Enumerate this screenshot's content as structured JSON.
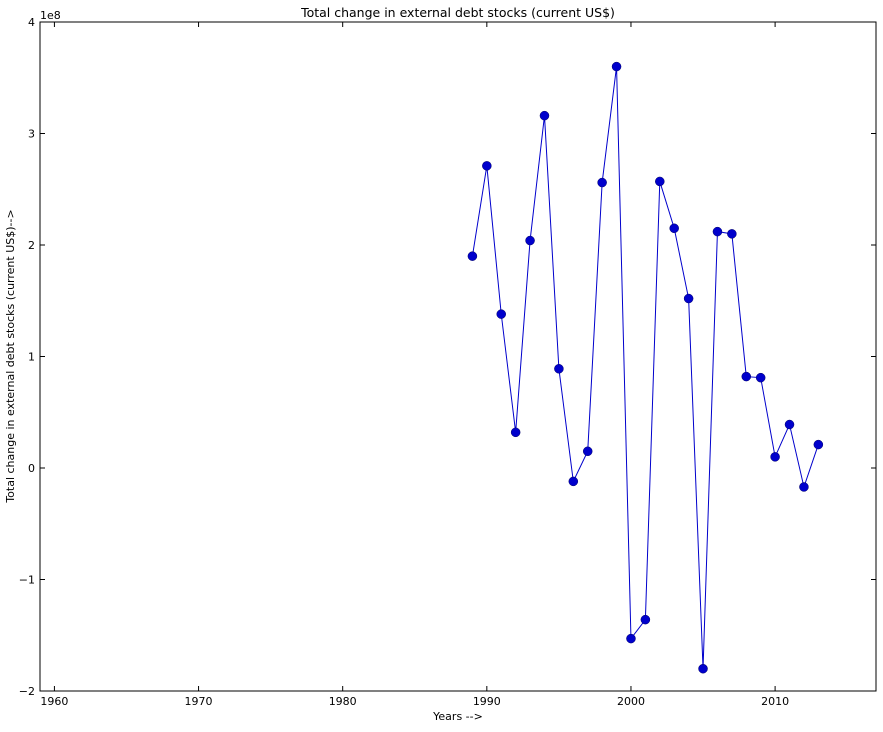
{
  "chart_data": {
    "type": "line",
    "title": "Total change in external debt stocks (current US$)",
    "xlabel": "Years -->",
    "ylabel": "Total change in external debt stocks (current US$)-->",
    "y_exponent_label": "1e8",
    "xlim": [
      1959,
      2017
    ],
    "ylim": [
      -2,
      4
    ],
    "y_units_multiplier": 100000000,
    "x_ticks": [
      1960,
      1970,
      1980,
      1990,
      2000,
      2010
    ],
    "x_tick_labels": [
      "1960",
      "1970",
      "1980",
      "1990",
      "2000",
      "2010"
    ],
    "y_ticks": [
      -2,
      -1,
      0,
      1,
      2,
      3,
      4
    ],
    "y_tick_labels": [
      "−2",
      "−1",
      "0",
      "1",
      "2",
      "3",
      "4"
    ],
    "grid": false,
    "legend": "none",
    "series": [
      {
        "color": "#0000cc",
        "marker": "circle",
        "x": [
          1989,
          1990,
          1991,
          1992,
          1993,
          1994,
          1995,
          1996,
          1997,
          1998,
          1999,
          2000,
          2001,
          2002,
          2003,
          2004,
          2005,
          2006,
          2007,
          2008,
          2009,
          2010,
          2011,
          2012,
          2013
        ],
        "y": [
          1.9,
          2.71,
          1.38,
          0.32,
          2.04,
          3.16,
          0.89,
          -0.12,
          0.15,
          2.56,
          3.6,
          -1.53,
          -1.36,
          2.57,
          2.15,
          1.52,
          -1.8,
          2.12,
          2.1,
          0.82,
          0.81,
          0.1,
          0.39,
          -0.17,
          0.21
        ]
      }
    ]
  }
}
